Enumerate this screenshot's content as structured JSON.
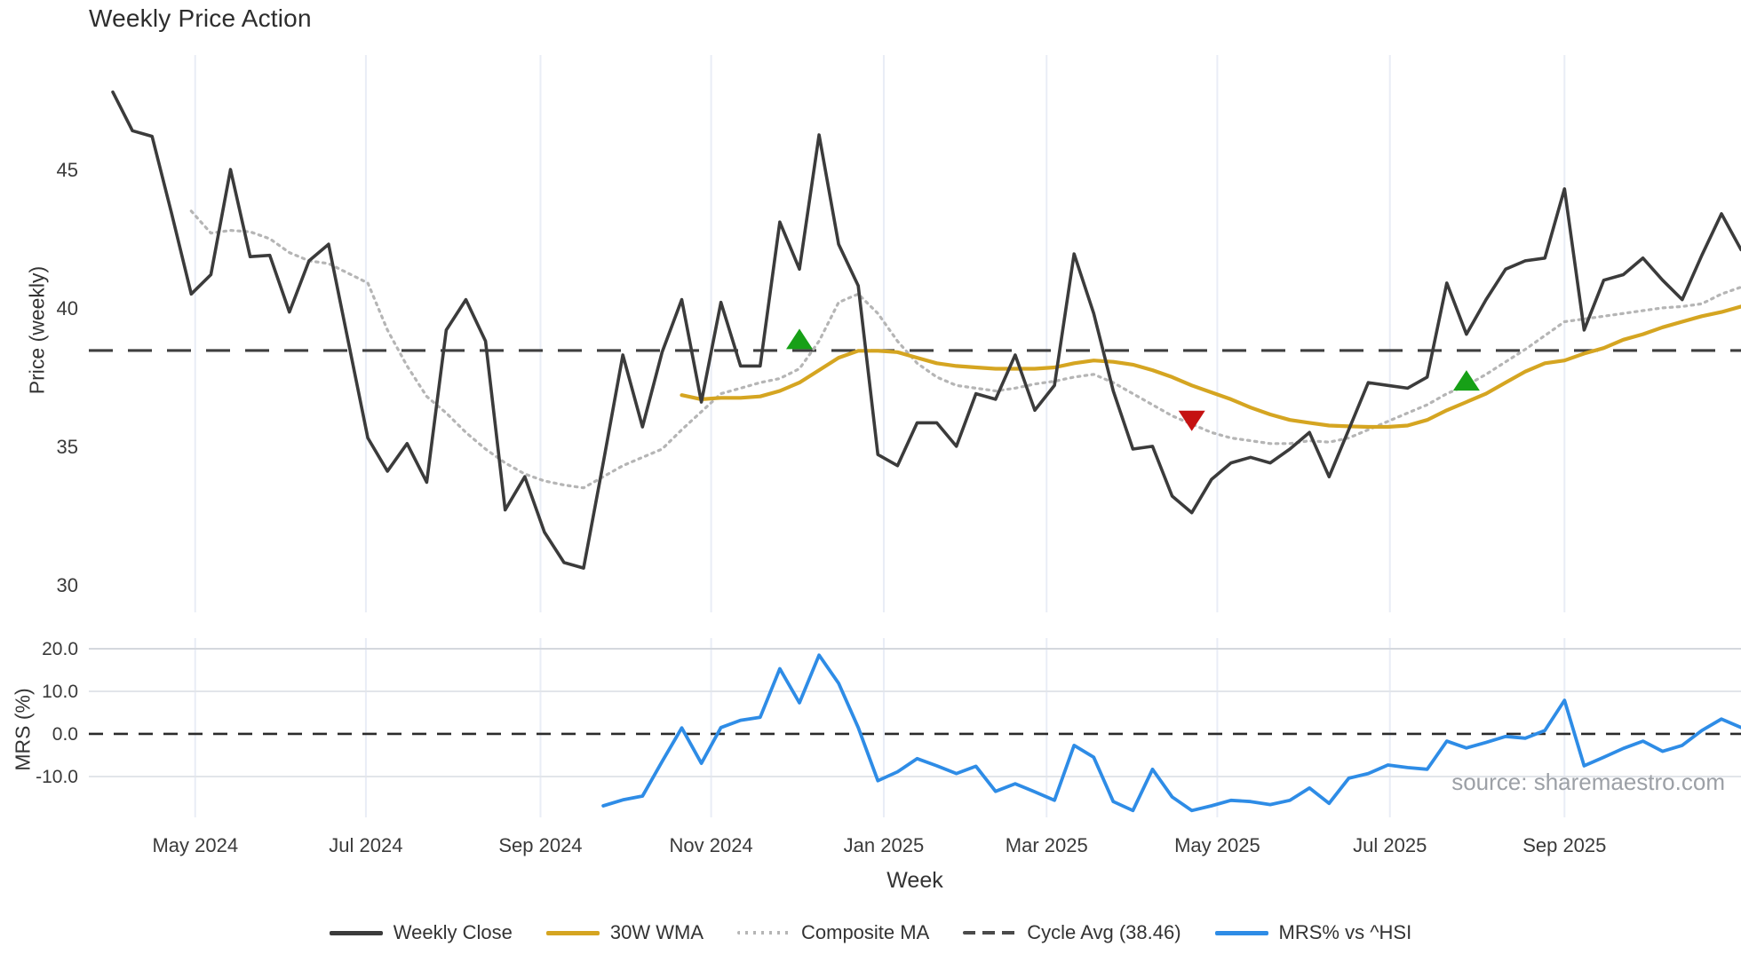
{
  "page": {
    "title": "Weekly Price Action",
    "source": "source: sharemaestro.com"
  },
  "axes": {
    "price": {
      "label": "Price (weekly)",
      "ticks": [
        {
          "label": "30",
          "value": 30
        },
        {
          "label": "35",
          "value": 35
        },
        {
          "label": "40",
          "value": 40
        },
        {
          "label": "45",
          "value": 45
        }
      ]
    },
    "mrs": {
      "label": "MRS (%)",
      "ticks": [
        {
          "label": "20.0",
          "value": 20
        },
        {
          "label": "10.0",
          "value": 10
        },
        {
          "label": "0.0",
          "value": 0
        },
        {
          "label": "-10.0",
          "value": -10
        }
      ]
    },
    "x": {
      "label": "Week",
      "ticks": [
        {
          "label": "May 2024",
          "week": 4.2
        },
        {
          "label": "Jul 2024",
          "week": 12.9
        },
        {
          "label": "Sep 2024",
          "week": 21.8
        },
        {
          "label": "Nov 2024",
          "week": 30.5
        },
        {
          "label": "Jan 2025",
          "week": 39.3
        },
        {
          "label": "Mar 2025",
          "week": 47.6
        },
        {
          "label": "May 2025",
          "week": 56.3
        },
        {
          "label": "Jul 2025",
          "week": 65.1
        },
        {
          "label": "Sep 2025",
          "week": 74.0
        }
      ]
    }
  },
  "legend": {
    "items": [
      {
        "key": "close",
        "label": "Weekly Close",
        "style": "solid",
        "color": "#3b3b3b"
      },
      {
        "key": "wma",
        "label": "30W WMA",
        "style": "solid",
        "color": "#d5a521"
      },
      {
        "key": "composite",
        "label": "Composite MA",
        "style": "dotted",
        "color": "#b5b5b5"
      },
      {
        "key": "cycle",
        "label": "Cycle Avg (38.46)",
        "style": "dashed",
        "color": "#4a4a4a"
      },
      {
        "key": "mrs",
        "label": "MRS% vs ^HSI",
        "style": "solid",
        "color": "#2e8ce6"
      }
    ]
  },
  "colors": {
    "close": "#3b3b3b",
    "wma": "#d5a521",
    "composite": "#b5b5b5",
    "cycle": "#3f3f3f",
    "mrs": "#2e8ce6",
    "zero_dash": "#2b2b2b",
    "marker_up": "#17a017",
    "marker_down": "#c51212",
    "grid_v": "#e9edf6",
    "grid_h": "#e2e5ea",
    "grid_h_top": "#d4d8de"
  },
  "chart_data": {
    "type": "line",
    "title": "Weekly Price Action",
    "frequency": "weekly",
    "start_date": "2024-04-01",
    "xlabel": "Week",
    "panels": {
      "price": {
        "ylabel": "Price (weekly)",
        "ylim": [
          29.0,
          49.2
        ],
        "grid": "vertical-only"
      },
      "mrs": {
        "ylabel": "MRS (%)",
        "ylim": [
          -19.6,
          22.5
        ],
        "grid": "both"
      }
    },
    "cycle_avg": 38.46,
    "series": [
      {
        "key": "close",
        "name": "Weekly Close",
        "panel": "price",
        "start_week": 0,
        "values": [
          47.8,
          46.4,
          46.2,
          43.4,
          40.5,
          41.2,
          45.0,
          41.85,
          41.9,
          39.85,
          41.7,
          42.3,
          38.8,
          35.3,
          34.1,
          35.1,
          33.7,
          39.2,
          40.3,
          38.8,
          32.7,
          33.9,
          31.9,
          30.8,
          30.6,
          34.4,
          38.3,
          35.7,
          38.4,
          40.3,
          36.6,
          40.2,
          37.9,
          37.9,
          43.1,
          41.4,
          46.25,
          42.3,
          40.8,
          34.7,
          34.3,
          35.85,
          35.85,
          35.0,
          36.9,
          36.7,
          38.3,
          36.3,
          37.2,
          41.95,
          39.8,
          37.0,
          34.9,
          35.0,
          33.2,
          32.6,
          33.8,
          34.4,
          34.6,
          34.4,
          34.9,
          35.5,
          33.9,
          35.6,
          37.3,
          37.2,
          37.1,
          37.5,
          40.9,
          39.05,
          40.3,
          41.4,
          41.7,
          41.8,
          44.3,
          39.2,
          41.0,
          41.2,
          41.8,
          41.0,
          40.3,
          41.9,
          43.4,
          42.1
        ]
      },
      {
        "key": "wma",
        "name": "30W WMA",
        "panel": "price",
        "start_week": 29,
        "values": [
          36.85,
          36.7,
          36.75,
          36.75,
          36.8,
          37.0,
          37.3,
          37.75,
          38.2,
          38.45,
          38.45,
          38.4,
          38.2,
          38.0,
          37.9,
          37.85,
          37.8,
          37.8,
          37.8,
          37.85,
          38.0,
          38.1,
          38.05,
          37.95,
          37.75,
          37.5,
          37.2,
          36.95,
          36.7,
          36.4,
          36.15,
          35.95,
          35.85,
          35.75,
          35.72,
          35.7,
          35.7,
          35.75,
          35.95,
          36.3,
          36.6,
          36.9,
          37.3,
          37.7,
          38.0,
          38.1,
          38.35,
          38.55,
          38.85,
          39.05,
          39.3,
          39.5,
          39.7,
          39.85,
          40.05
        ]
      },
      {
        "key": "composite",
        "name": "Composite MA",
        "panel": "price",
        "start_week": 4,
        "values": [
          43.5,
          42.7,
          42.8,
          42.75,
          42.5,
          42.0,
          41.7,
          41.6,
          41.25,
          40.9,
          39.2,
          37.9,
          36.8,
          36.2,
          35.5,
          34.9,
          34.4,
          34.0,
          33.75,
          33.6,
          33.5,
          33.9,
          34.3,
          34.6,
          34.9,
          35.6,
          36.25,
          36.9,
          37.1,
          37.3,
          37.45,
          37.8,
          38.8,
          40.2,
          40.5,
          39.8,
          38.8,
          38.0,
          37.5,
          37.2,
          37.1,
          37.0,
          37.1,
          37.25,
          37.35,
          37.5,
          37.6,
          37.3,
          36.9,
          36.5,
          36.1,
          35.8,
          35.5,
          35.3,
          35.2,
          35.1,
          35.1,
          35.2,
          35.15,
          35.3,
          35.6,
          35.9,
          36.2,
          36.5,
          36.9,
          37.2,
          37.6,
          38.05,
          38.5,
          39.0,
          39.5,
          39.6,
          39.7,
          39.8,
          39.9,
          40.0,
          40.05,
          40.15,
          40.5,
          40.75
        ]
      },
      {
        "key": "cycle",
        "name": "Cycle Avg (38.46)",
        "panel": "price",
        "constant": 38.46
      },
      {
        "key": "mrs",
        "name": "MRS% vs ^HSI",
        "panel": "mrs",
        "start_week": 25,
        "values": [
          -16.9,
          -15.5,
          -14.6,
          -6.5,
          1.4,
          -6.9,
          1.5,
          3.2,
          3.9,
          15.3,
          7.3,
          18.5,
          11.9,
          1.5,
          -11.0,
          -8.9,
          -5.8,
          -7.5,
          -9.3,
          -7.6,
          -13.5,
          -11.7,
          -13.6,
          -15.6,
          -2.7,
          -5.5,
          -15.9,
          -18.0,
          -8.3,
          -14.8,
          -18.0,
          -16.9,
          -15.6,
          -15.9,
          -16.6,
          -15.6,
          -12.7,
          -16.3,
          -10.4,
          -9.3,
          -7.3,
          -7.9,
          -8.3,
          -1.7,
          -3.3,
          -2.0,
          -0.6,
          -1.0,
          0.8,
          7.9,
          -7.5,
          -5.5,
          -3.4,
          -1.7,
          -4.1,
          -2.7,
          0.8,
          3.5,
          1.5
        ]
      }
    ],
    "markers": [
      {
        "shape": "triangle-up",
        "panel": "price",
        "week": 35,
        "value": 38.8,
        "color_key": "marker_up"
      },
      {
        "shape": "triangle-down",
        "panel": "price",
        "week": 55,
        "value": 36.0,
        "color_key": "marker_down"
      },
      {
        "shape": "triangle-up",
        "panel": "price",
        "week": 69,
        "value": 37.3,
        "color_key": "marker_up"
      }
    ],
    "mrs_zero_line": 0.0
  }
}
